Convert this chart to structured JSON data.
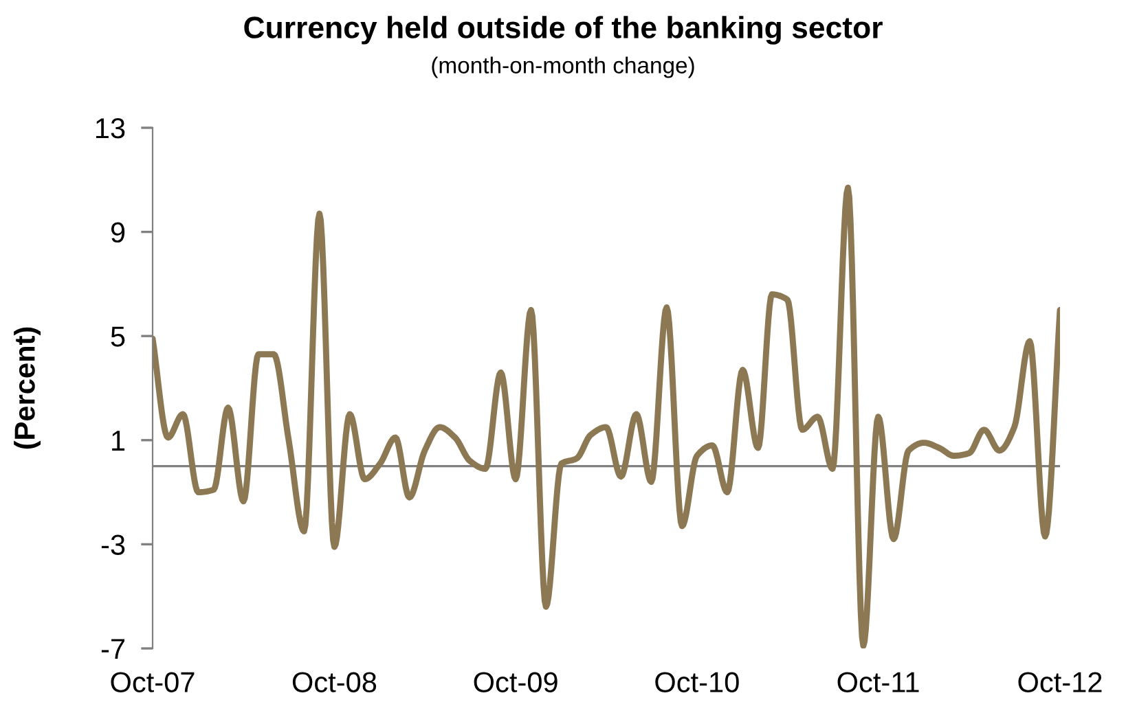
{
  "chart_data": {
    "type": "line",
    "title": "Currency held outside of the banking sector",
    "subtitle": "(month-on-month change)",
    "ylabel": "(Percent)",
    "x": [
      "2007-10",
      "2007-11",
      "2007-12",
      "2008-01",
      "2008-02",
      "2008-03",
      "2008-04",
      "2008-05",
      "2008-06",
      "2008-07",
      "2008-08",
      "2008-09",
      "2008-10",
      "2008-11",
      "2008-12",
      "2009-01",
      "2009-02",
      "2009-03",
      "2009-04",
      "2009-05",
      "2009-06",
      "2009-07",
      "2009-08",
      "2009-09",
      "2009-10",
      "2009-11",
      "2009-12",
      "2010-01",
      "2010-02",
      "2010-03",
      "2010-04",
      "2010-05",
      "2010-06",
      "2010-07",
      "2010-08",
      "2010-09",
      "2010-10",
      "2010-11",
      "2010-12",
      "2011-01",
      "2011-02",
      "2011-03",
      "2011-04",
      "2011-05",
      "2011-06",
      "2011-07",
      "2011-08",
      "2011-09",
      "2011-10",
      "2011-11",
      "2011-12",
      "2012-01",
      "2012-02",
      "2012-03",
      "2012-04",
      "2012-05",
      "2012-06",
      "2012-07",
      "2012-08",
      "2012-09",
      "2012-10"
    ],
    "series": [
      {
        "color": "#8c7853",
        "values": [
          4.9,
          1.1,
          2.0,
          -1.0,
          -0.9,
          2.25,
          -1.35,
          4.3,
          4.3,
          1.0,
          -2.5,
          9.7,
          -3.1,
          2.0,
          -0.5,
          0.1,
          1.1,
          -1.2,
          0.6,
          1.5,
          1.1,
          0.2,
          -0.1,
          3.6,
          -0.5,
          6.0,
          -5.4,
          0.1,
          0.3,
          1.2,
          1.5,
          -0.4,
          2.0,
          -0.6,
          6.1,
          -2.3,
          0.4,
          0.8,
          -1.0,
          3.7,
          0.7,
          6.6,
          6.4,
          1.4,
          1.9,
          -0.1,
          10.7,
          -6.9,
          1.9,
          -2.8,
          0.6,
          0.9,
          0.7,
          0.4,
          0.5,
          1.4,
          0.6,
          1.5,
          4.8,
          -2.7,
          6.0
        ]
      }
    ],
    "xlim": [
      "2007-10",
      "2012-10"
    ],
    "xticks": [
      {
        "value": "2007-10",
        "label": "Oct-07"
      },
      {
        "value": "2008-10",
        "label": "Oct-08"
      },
      {
        "value": "2009-10",
        "label": "Oct-09"
      },
      {
        "value": "2010-10",
        "label": "Oct-10"
      },
      {
        "value": "2011-10",
        "label": "Oct-11"
      },
      {
        "value": "2012-10",
        "label": "Oct-12"
      }
    ],
    "ylim": [
      -7,
      13
    ],
    "yticks": [
      -7,
      -3,
      1,
      5,
      9,
      13
    ],
    "grid": false,
    "marker": "none",
    "line_style": "solid"
  }
}
